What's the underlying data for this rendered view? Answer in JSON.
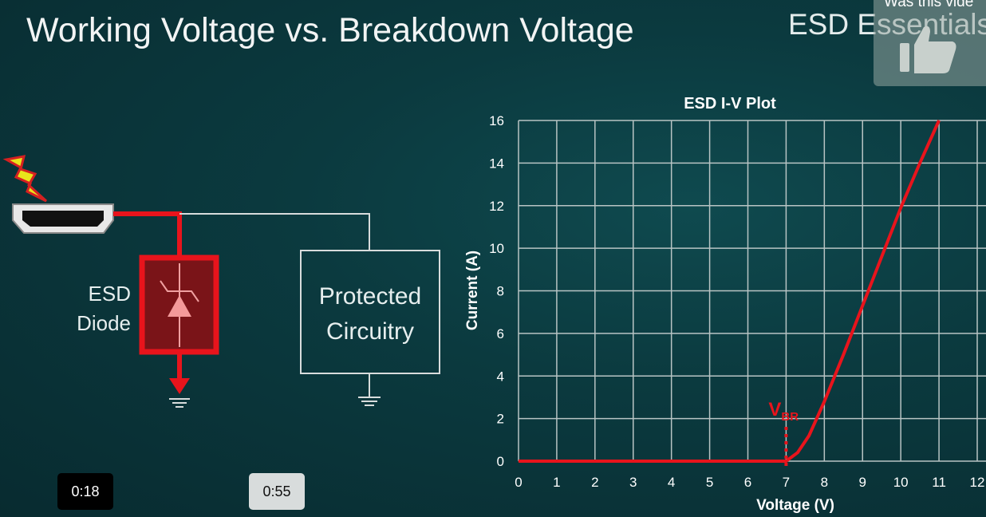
{
  "slide": {
    "title": "Working Voltage vs. Breakdown Voltage",
    "brand": "ESD Essentials",
    "diagram": {
      "diode_label_line1": "ESD",
      "diode_label_line2": "Diode",
      "protected_line1": "Protected",
      "protected_line2": "Circuitry",
      "icons": [
        "lightning-bolt-icon",
        "hdmi-connector-icon",
        "tvs-diode-icon",
        "ground-icon"
      ],
      "highlight_color": "#e8141c"
    }
  },
  "player": {
    "feedback_prompt": "Was this vide",
    "feedback_icon": "thumbs-up-icon",
    "time_current": "0:18",
    "time_total": "0:55"
  },
  "chart_data": {
    "type": "line",
    "title": "ESD I-V Plot",
    "xlabel": "Voltage (V)",
    "ylabel": "Current (A)",
    "xlim": [
      0,
      12
    ],
    "ylim": [
      0,
      16
    ],
    "xticks": [
      "0",
      "1",
      "2",
      "3",
      "4",
      "5",
      "6",
      "7",
      "8",
      "9",
      "10",
      "11",
      "12"
    ],
    "yticks": [
      "0",
      "2",
      "4",
      "6",
      "8",
      "10",
      "12",
      "14",
      "16"
    ],
    "grid": true,
    "series": [
      {
        "color": "#e8141c",
        "x": [
          0,
          6,
          7,
          7.3,
          7.6,
          8,
          8.5,
          9,
          9.5,
          10,
          10.5,
          11
        ],
        "y": [
          0,
          0,
          0,
          0.4,
          1.2,
          2.8,
          5,
          7.3,
          9.6,
          11.9,
          14,
          16
        ]
      }
    ],
    "annotations": [
      {
        "text": "V",
        "subscript": "BR",
        "x": 7,
        "style": "dotted vertical marker"
      }
    ]
  }
}
